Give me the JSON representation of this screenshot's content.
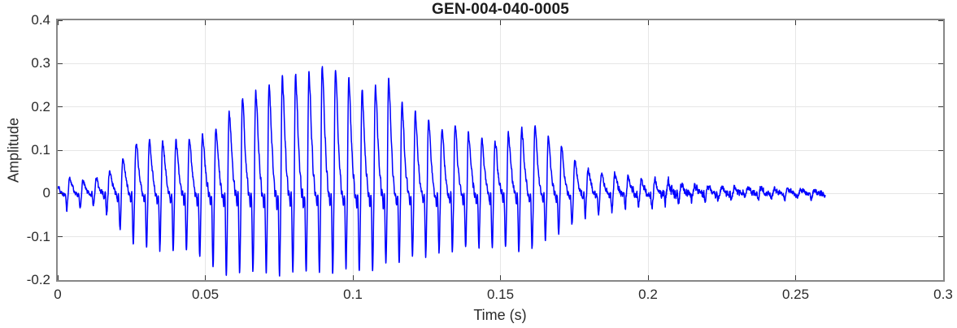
{
  "chart_data": {
    "type": "line",
    "title": "GEN-004-040-0005",
    "xlabel": "Time (s)",
    "ylabel": "Amplitude",
    "xlim": [
      0,
      0.3
    ],
    "ylim": [
      -0.2,
      0.4
    ],
    "grid": true,
    "legend": null,
    "xticks": [
      {
        "v": 0,
        "label": "0"
      },
      {
        "v": 0.05,
        "label": "0.05"
      },
      {
        "v": 0.1,
        "label": "0.1"
      },
      {
        "v": 0.15,
        "label": "0.15"
      },
      {
        "v": 0.2,
        "label": "0.2"
      },
      {
        "v": 0.25,
        "label": "0.25"
      },
      {
        "v": 0.3,
        "label": "0.3"
      }
    ],
    "yticks": [
      {
        "v": -0.2,
        "label": "-0.2"
      },
      {
        "v": -0.1,
        "label": "-0.1"
      },
      {
        "v": 0,
        "label": "0"
      },
      {
        "v": 0.1,
        "label": "0.1"
      },
      {
        "v": 0.2,
        "label": "0.2"
      },
      {
        "v": 0.3,
        "label": "0.3"
      },
      {
        "v": 0.4,
        "label": "0.4"
      }
    ],
    "signal": {
      "kind": "speech-like waveform burst",
      "t_start": 0,
      "t_end": 0.26,
      "fundamental_hz": 222,
      "peak_amplitude": 0.305,
      "peak_time": 0.09,
      "min_amplitude": -0.19,
      "harmonics": [
        [
          1.0,
          1.05
        ],
        [
          0.75,
          2.4
        ],
        [
          0.5,
          4.05
        ],
        [
          0.33,
          6.0
        ],
        [
          0.21,
          8.25
        ],
        [
          0.12,
          10.8
        ],
        [
          0.07,
          13.65
        ]
      ],
      "env_t": [
        0.0,
        0.004,
        0.008,
        0.012,
        0.016,
        0.02,
        0.024,
        0.028,
        0.032,
        0.036,
        0.04,
        0.044,
        0.048,
        0.052,
        0.056,
        0.06,
        0.064,
        0.068,
        0.072,
        0.076,
        0.08,
        0.084,
        0.088,
        0.092,
        0.096,
        0.1,
        0.104,
        0.108,
        0.111,
        0.114,
        0.118,
        0.122,
        0.126,
        0.13,
        0.134,
        0.138,
        0.142,
        0.146,
        0.15,
        0.154,
        0.158,
        0.162,
        0.166,
        0.17,
        0.174,
        0.178,
        0.182,
        0.186,
        0.19,
        0.195,
        0.2,
        0.205,
        0.21,
        0.216,
        0.224,
        0.232,
        0.242,
        0.252,
        0.26
      ],
      "env_upper": [
        0.02,
        0.035,
        0.03,
        0.03,
        0.04,
        0.06,
        0.1,
        0.13,
        0.12,
        0.12,
        0.12,
        0.125,
        0.13,
        0.14,
        0.16,
        0.21,
        0.23,
        0.24,
        0.25,
        0.265,
        0.275,
        0.27,
        0.29,
        0.305,
        0.27,
        0.26,
        0.235,
        0.25,
        0.285,
        0.23,
        0.2,
        0.18,
        0.165,
        0.15,
        0.16,
        0.145,
        0.13,
        0.12,
        0.125,
        0.14,
        0.155,
        0.15,
        0.13,
        0.11,
        0.08,
        0.06,
        0.05,
        0.042,
        0.046,
        0.04,
        0.03,
        0.028,
        0.02,
        0.016,
        0.013,
        0.012,
        0.011,
        0.01,
        0.008
      ],
      "env_lower": [
        -0.03,
        -0.04,
        -0.035,
        -0.03,
        -0.045,
        -0.07,
        -0.11,
        -0.12,
        -0.12,
        -0.13,
        -0.13,
        -0.14,
        -0.15,
        -0.17,
        -0.18,
        -0.19,
        -0.18,
        -0.18,
        -0.185,
        -0.19,
        -0.18,
        -0.185,
        -0.18,
        -0.18,
        -0.175,
        -0.17,
        -0.18,
        -0.17,
        -0.16,
        -0.16,
        -0.15,
        -0.145,
        -0.135,
        -0.13,
        -0.128,
        -0.125,
        -0.125,
        -0.13,
        -0.125,
        -0.13,
        -0.135,
        -0.12,
        -0.1,
        -0.09,
        -0.07,
        -0.055,
        -0.045,
        -0.04,
        -0.035,
        -0.03,
        -0.032,
        -0.028,
        -0.02,
        -0.016,
        -0.014,
        -0.013,
        -0.011,
        -0.01,
        -0.008
      ],
      "noise_t": [
        0.0,
        0.06,
        0.16,
        0.18,
        0.196,
        0.2,
        0.206,
        0.212,
        0.22,
        0.232,
        0.246,
        0.26
      ],
      "noise_a": [
        0.006,
        0.01,
        0.009,
        0.008,
        0.01,
        0.013,
        0.014,
        0.011,
        0.01,
        0.009,
        0.008,
        0.007
      ]
    }
  },
  "colors": {
    "background": "#ffffff",
    "waveform": "#0000FF",
    "axis_box": "#878787",
    "grid": "#e6e6e6",
    "tick_mark": "#3a3a3a",
    "tick_text": "#2a2a2a",
    "title_text": "#1d1d1d"
  }
}
